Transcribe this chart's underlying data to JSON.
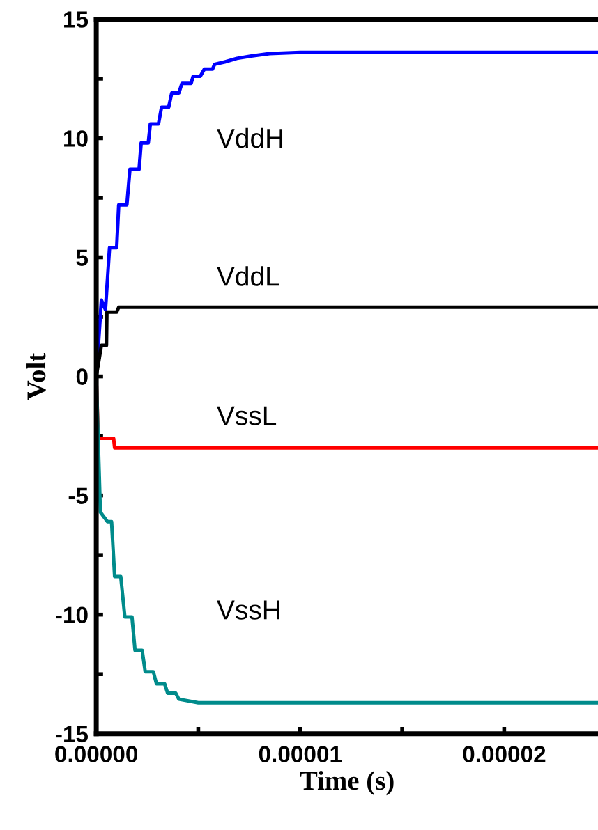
{
  "chart_data": {
    "type": "line",
    "xlabel": "Time (s)",
    "ylabel": "Volt",
    "xlim": [
      0,
      2.46e-05
    ],
    "ylim": [
      -15,
      15
    ],
    "xticks": [
      {
        "value": 0,
        "label": "0.00000"
      },
      {
        "value": 5e-06,
        "label": null
      },
      {
        "value": 1e-05,
        "label": "0.00001"
      },
      {
        "value": 1.5e-05,
        "label": null
      },
      {
        "value": 2e-05,
        "label": "0.00002"
      }
    ],
    "yticks": [
      -15,
      {
        "value": -12.5,
        "label": null
      },
      -10,
      {
        "value": -7.5,
        "label": null
      },
      -5,
      {
        "value": -2.5,
        "label": null
      },
      0,
      {
        "value": 2.5,
        "label": null
      },
      5,
      {
        "value": 7.5,
        "label": null
      },
      10,
      {
        "value": 12.5,
        "label": null
      },
      15
    ],
    "grid": false,
    "legend": false,
    "marker": "none",
    "line_style": "solid",
    "series": [
      {
        "name": "VddH",
        "color": "#0000ff",
        "x": [
          0,
          2.5e-07,
          4.5e-07,
          6.5e-07,
          1e-06,
          1.1e-06,
          1.5e-06,
          1.65e-06,
          2.1e-06,
          2.2e-06,
          2.55e-06,
          2.65e-06,
          3.05e-06,
          3.2e-06,
          3.55e-06,
          3.7e-06,
          4.05e-06,
          4.2e-06,
          4.65e-06,
          4.75e-06,
          5.1e-06,
          5.3e-06,
          5.7e-06,
          5.8e-06,
          6.3e-06,
          6.9e-06,
          7.6e-06,
          8.5e-06,
          1e-05,
          2.46e-05
        ],
        "values": [
          0,
          3.2,
          2.8,
          5.4,
          5.4,
          7.2,
          7.2,
          8.7,
          8.7,
          9.8,
          9.8,
          10.6,
          10.6,
          11.3,
          11.3,
          11.9,
          11.9,
          12.3,
          12.3,
          12.6,
          12.6,
          12.9,
          12.9,
          13.1,
          13.2,
          13.35,
          13.45,
          13.55,
          13.6,
          13.6
        ]
      },
      {
        "name": "VddL",
        "color": "#000000",
        "x": [
          0,
          2.5e-07,
          5e-07,
          5.2e-07,
          1e-06,
          1.1e-06,
          2.46e-05
        ],
        "values": [
          0,
          1.3,
          1.3,
          2.7,
          2.7,
          2.9,
          2.9
        ]
      },
      {
        "name": "VssL",
        "color": "#ff0000",
        "x": [
          0,
          1e-07,
          8.5e-07,
          9e-07,
          2.46e-05
        ],
        "values": [
          0,
          -2.6,
          -2.6,
          -3.0,
          -3.0
        ]
      },
      {
        "name": "VssH",
        "color": "#008b8b",
        "x": [
          0,
          2e-07,
          5.5e-07,
          7.5e-07,
          9e-07,
          1.2e-06,
          1.4e-06,
          1.75e-06,
          1.9e-06,
          2.25e-06,
          2.4e-06,
          2.8e-06,
          2.95e-06,
          3.35e-06,
          3.5e-06,
          3.9e-06,
          4.05e-06,
          5e-06,
          2.46e-05
        ],
        "values": [
          0,
          -5.7,
          -6.1,
          -6.1,
          -8.4,
          -8.4,
          -10.1,
          -10.1,
          -11.5,
          -11.5,
          -12.4,
          -12.4,
          -12.9,
          -12.9,
          -13.3,
          -13.3,
          -13.55,
          -13.7,
          -13.7
        ]
      }
    ]
  }
}
